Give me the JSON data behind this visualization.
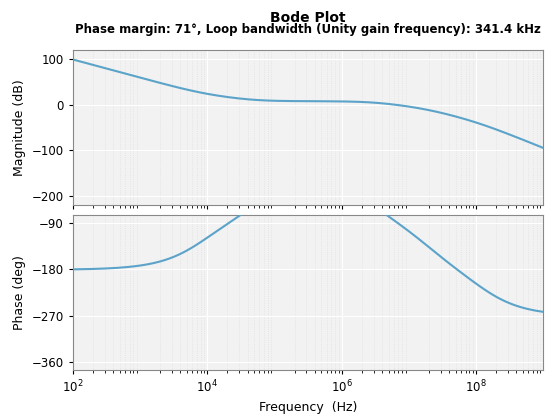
{
  "title": "Bode Plot",
  "subtitle": "Phase margin: 71°, Loop bandwidth (Unity gain frequency): 341.4 kHz",
  "xlabel": "Frequency  (Hz)",
  "ylabel_mag": "Magnitude (dB)",
  "ylabel_phase": "Phase (deg)",
  "freq_range": [
    100.0,
    1000000000.0
  ],
  "mag_ylim": [
    -220,
    120
  ],
  "mag_yticks": [
    100,
    0,
    -100,
    -200
  ],
  "phase_ylim": [
    -375,
    -75
  ],
  "phase_yticks": [
    -90,
    -180,
    -270,
    -360
  ],
  "line_color": "#5BA3C9",
  "line_width": 1.5,
  "bg_color": "#FFFFFF",
  "axes_bg_color": "#F2F2F2",
  "grid_major_color": "#FFFFFF",
  "grid_minor_color": "#DCDCDC"
}
